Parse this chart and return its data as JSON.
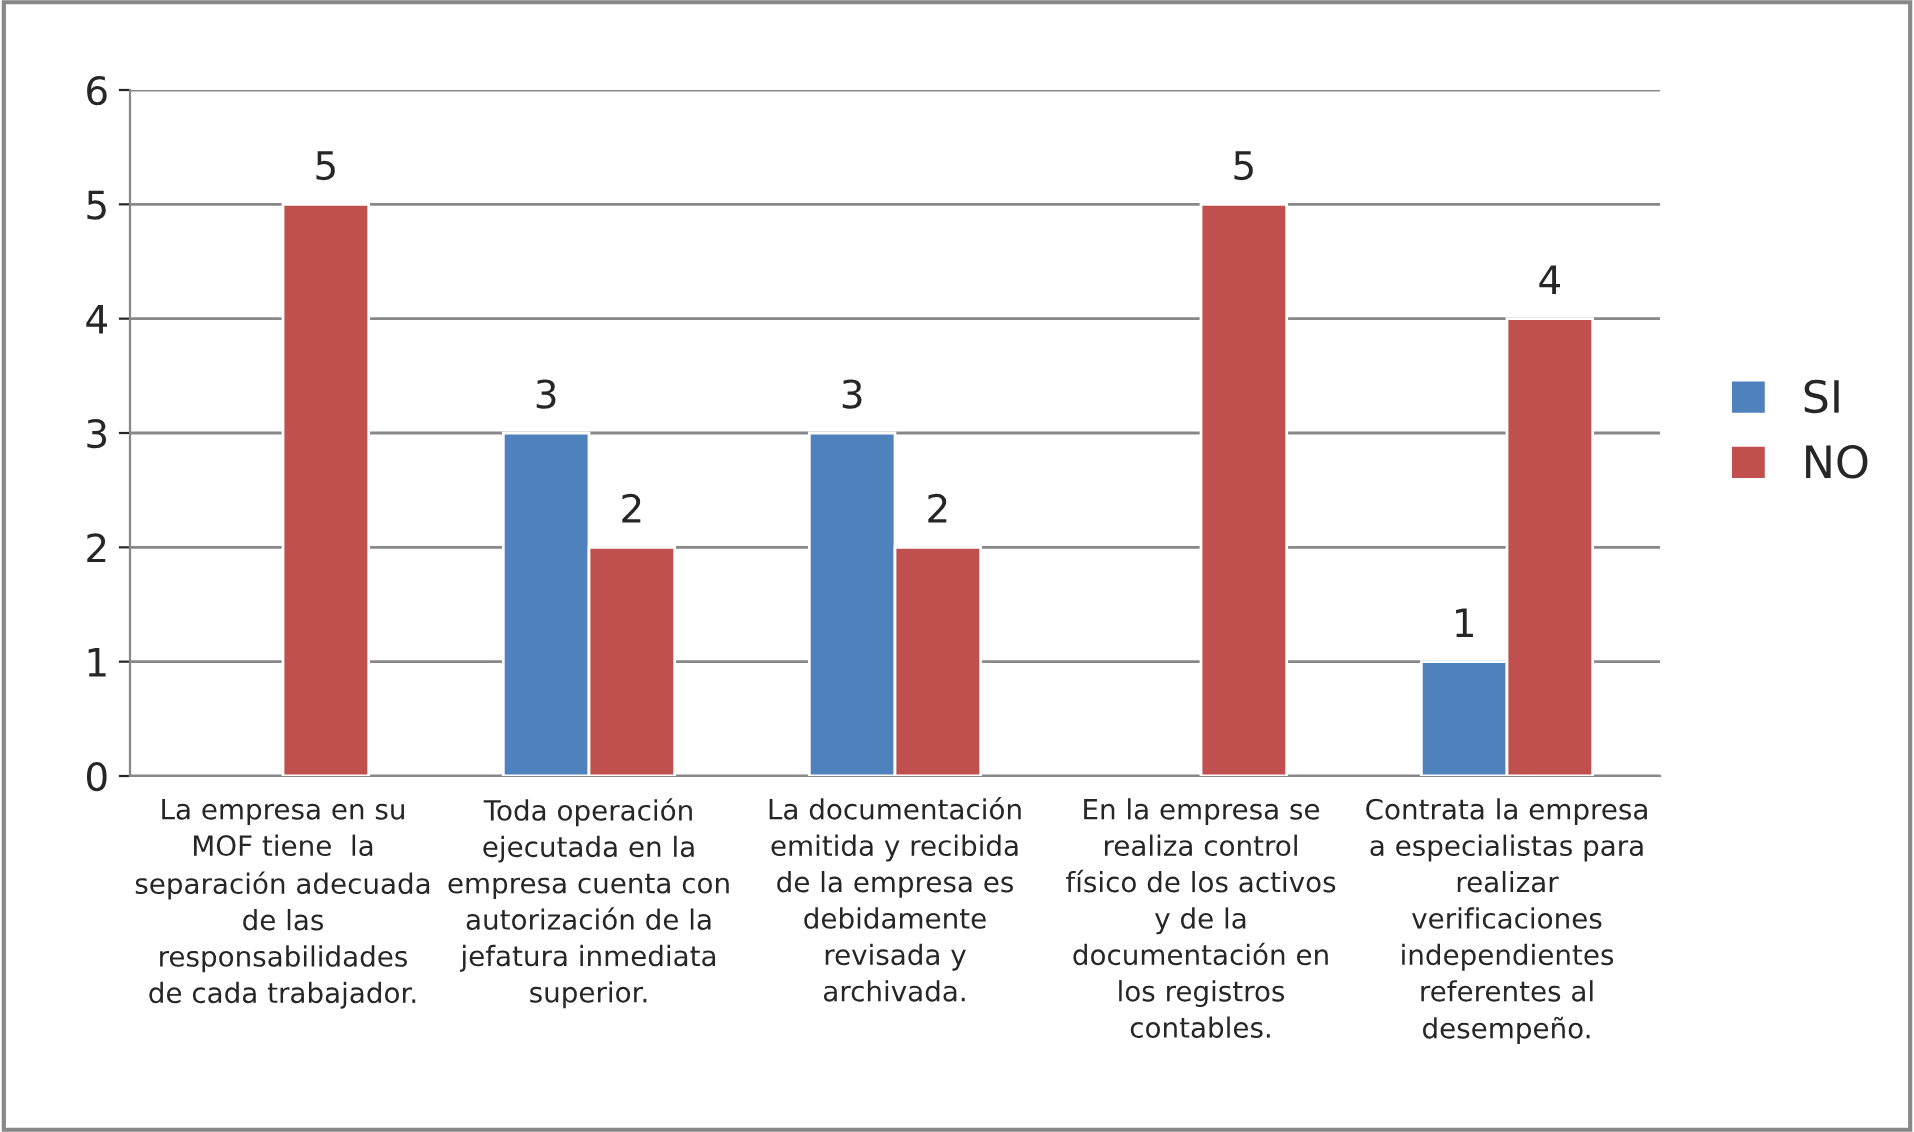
{
  "chart_data": {
    "type": "bar",
    "categories": [
      "La empresa en su\nMOF tiene  la\nseparación adecuada\nde las\nresponsabilidades\nde cada trabajador.",
      "Toda operación\nejecutada en la\nempresa cuenta con\nautorización de la\njefatura inmediata\nsuperior.",
      "La documentación\nemitida y recibida\nde la empresa es\ndebidamente\nrevisada y\narchivada.",
      "En la empresa se\nrealiza control\nfísico de los activos\ny de la\ndocumentación en\nlos registros\ncontables.",
      "Contrata la empresa\na especialistas para\nrealizar\nverificaciones\nindependientes\nreferentes al\ndesempeño."
    ],
    "series": [
      {
        "name": "SI",
        "color": "#4f81bd",
        "values": [
          null,
          3,
          3,
          null,
          1
        ]
      },
      {
        "name": "NO",
        "color": "#c0504d",
        "values": [
          5,
          2,
          2,
          5,
          4
        ]
      }
    ],
    "ylim": [
      0,
      6
    ],
    "yticks": [
      0,
      1,
      2,
      3,
      4,
      5,
      6
    ],
    "grid": "y",
    "legend": "right",
    "data_labels": true
  }
}
